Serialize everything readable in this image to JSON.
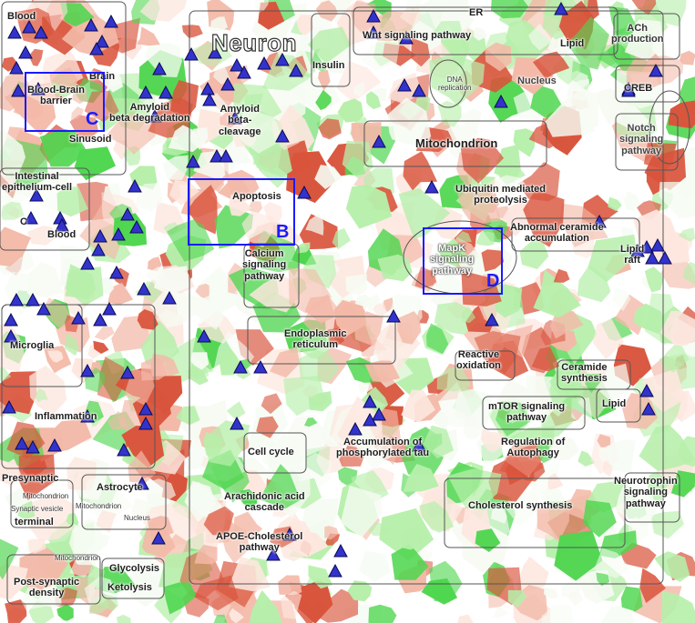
{
  "title": "Neuron",
  "colors": {
    "down_strong": "#d9543c",
    "down_light": "#f3b9a8",
    "up_strong": "#4fd64f",
    "up_light": "#b6efaa",
    "neutral": "#ffffff",
    "marker_fill": "#3333cc",
    "marker_stroke": "#0a0a55",
    "panel_border": "#1a1aff"
  },
  "labels": {
    "blood_top": "Blood",
    "brain": "Brain",
    "bbb": "Blood-Brain\nbarrier",
    "sinusoid": "Sinusoid",
    "amyloid_degradation": "Amyloid\nbeta degradation",
    "amyloid_cleavage": "Amyloid\nbeta-\ncleavage",
    "insulin": "Insulin",
    "wnt": "Wnt signaling pathway",
    "er": "ER",
    "lipid_top": "Lipid",
    "ach": "ACh\nproduction",
    "dna": "DNA\nreplication",
    "nucleus_main": "Nucleus",
    "creb": "CREB",
    "notch": "Notch\nsignaling\npathway",
    "mitochondrion_main": "Mitochondrion",
    "intestinal": "Intestinal\nepithelium-cell",
    "c_small": "C",
    "blood_left": "Blood",
    "apoptosis": "Apoptosis",
    "ubiquitin": "Ubiquitin mediated\nproteolysis",
    "ceramide_accum": "Abnormal ceramide\naccumulation",
    "lipid_raft": "Lipid\nraft",
    "calcium": "Calcium\nsignaling\npathway",
    "mapk": "MapK\nsignaling\npathway",
    "microglia": "Microglia",
    "er_full": "Endoplasmic\nreticulum",
    "reactive": "Reactive\noxidation",
    "ceramide_synth": "Ceramide\nsynthesis",
    "inflammation": "Inflammation",
    "mtor": "mTOR signaling\npathway",
    "lipid_mid": "Lipid",
    "cell_cycle": "Cell cycle",
    "phospho_tau": "Accumulation of\nphosphorylated tau",
    "autophagy": "Regulation of\nAutophagy",
    "presynaptic": "Presynaptic",
    "mito_pre": "Mitochondrion",
    "syn_vesicle": "Synaptic vesicle",
    "terminal": "terminal",
    "astrocyte": "Astrocyte",
    "mito_astro": "Mitochondrion",
    "nucleus_astro": "Nucleus",
    "arachidonic": "Arachidonic acid\ncascade",
    "cholesterol": "Cholesterol synthesis",
    "neurotrophin": "Neurotrophin\nsignaling\npathway",
    "apoe": "APOE-Cholesterol\npathway",
    "mito_post": "Mitochondrion",
    "glycolysis": "Glycolysis",
    "ketolysis": "Ketolysis",
    "postsynaptic": "Post-synaptic\ndensity"
  },
  "panels": {
    "b": "B",
    "c": "C",
    "d": "D"
  }
}
